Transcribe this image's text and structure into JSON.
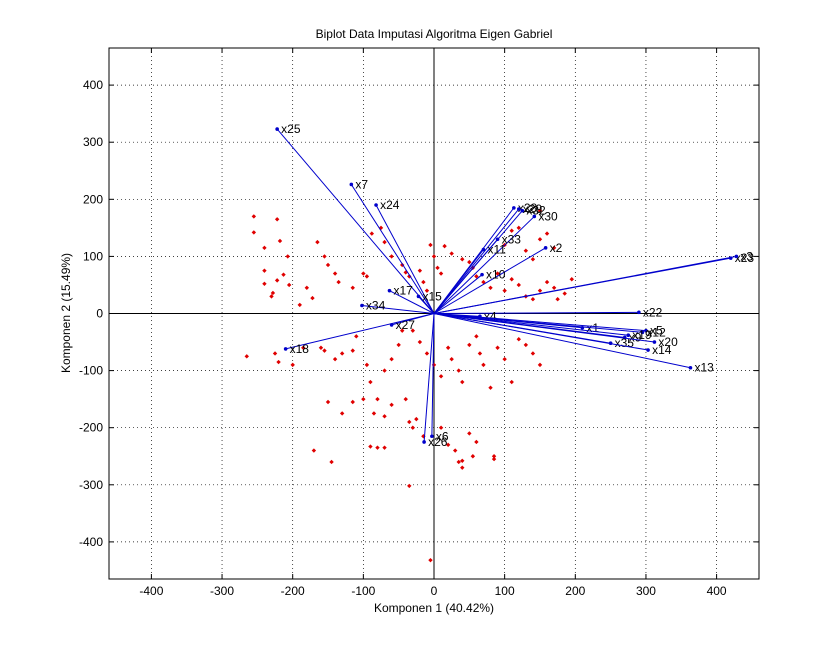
{
  "chart_data": {
    "type": "scatter",
    "title": "Biplot Data Imputasi Algoritma Eigen Gabriel",
    "xlabel": "Komponen 1 (40.42%)",
    "ylabel": "Komponen 2 (15.49%)",
    "xlim": [
      -460,
      460
    ],
    "ylim": [
      -465,
      465
    ],
    "xticks": [
      -400,
      -300,
      -200,
      -100,
      0,
      100,
      200,
      300,
      400
    ],
    "yticks": [
      -400,
      -300,
      -200,
      -100,
      0,
      100,
      200,
      300,
      400
    ],
    "grid": true,
    "colors": {
      "vectors": "#0000cc",
      "points": "#e00000",
      "axes": "#000000"
    },
    "vectors": [
      {
        "label": "x25",
        "x": -222,
        "y": 323
      },
      {
        "label": "x7",
        "x": -117,
        "y": 226
      },
      {
        "label": "x24",
        "x": -82,
        "y": 190
      },
      {
        "label": "x17",
        "x": -63,
        "y": 40
      },
      {
        "label": "x15",
        "x": -22,
        "y": 30
      },
      {
        "label": "x34",
        "x": -102,
        "y": 14
      },
      {
        "label": "x27",
        "x": -60,
        "y": -20
      },
      {
        "label": "x18",
        "x": -210,
        "y": -62
      },
      {
        "label": "x26",
        "x": -14,
        "y": -225
      },
      {
        "label": "x6",
        "x": -3,
        "y": -215
      },
      {
        "label": "x23",
        "x": 420,
        "y": 97
      },
      {
        "label": "x3",
        "x": 428,
        "y": 100
      },
      {
        "label": "x22",
        "x": 290,
        "y": 2
      },
      {
        "label": "x1",
        "x": 210,
        "y": -25
      },
      {
        "label": "x4",
        "x": 65,
        "y": -5
      },
      {
        "label": "x2",
        "x": 158,
        "y": 115
      },
      {
        "label": "x30",
        "x": 142,
        "y": 170
      },
      {
        "label": "x28",
        "x": 113,
        "y": 185
      },
      {
        "label": "x29",
        "x": 120,
        "y": 183
      },
      {
        "label": "x32",
        "x": 125,
        "y": 180
      },
      {
        "label": "x33",
        "x": 90,
        "y": 130
      },
      {
        "label": "x11",
        "x": 70,
        "y": 112
      },
      {
        "label": "x10",
        "x": 68,
        "y": 68
      },
      {
        "label": "x5",
        "x": 300,
        "y": -30
      },
      {
        "label": "x12",
        "x": 295,
        "y": -33
      },
      {
        "label": "x9",
        "x": 270,
        "y": -42
      },
      {
        "label": "x19",
        "x": 275,
        "y": -38
      },
      {
        "label": "x35",
        "x": 250,
        "y": -52
      },
      {
        "label": "x20",
        "x": 312,
        "y": -50
      },
      {
        "label": "x14",
        "x": 303,
        "y": -64
      },
      {
        "label": "x13",
        "x": 363,
        "y": -95
      }
    ],
    "points": [
      [
        -255,
        170
      ],
      [
        -255,
        142
      ],
      [
        -240,
        115
      ],
      [
        -240,
        75
      ],
      [
        -240,
        52
      ],
      [
        -222,
        165
      ],
      [
        -218,
        127
      ],
      [
        -207,
        100
      ],
      [
        -213,
        68
      ],
      [
        -222,
        58
      ],
      [
        -228,
        36
      ],
      [
        -230,
        30
      ],
      [
        -205,
        50
      ],
      [
        -190,
        15
      ],
      [
        -180,
        45
      ],
      [
        -172,
        27
      ],
      [
        -165,
        125
      ],
      [
        -155,
        100
      ],
      [
        -150,
        85
      ],
      [
        -140,
        70
      ],
      [
        -135,
        55
      ],
      [
        -115,
        45
      ],
      [
        -100,
        70
      ],
      [
        -95,
        65
      ],
      [
        -88,
        140
      ],
      [
        -75,
        150
      ],
      [
        -70,
        125
      ],
      [
        -60,
        100
      ],
      [
        -45,
        85
      ],
      [
        -40,
        72
      ],
      [
        -35,
        65
      ],
      [
        -20,
        75
      ],
      [
        -15,
        55
      ],
      [
        -10,
        40
      ],
      [
        -5,
        120
      ],
      [
        0,
        100
      ],
      [
        5,
        80
      ],
      [
        10,
        70
      ],
      [
        15,
        118
      ],
      [
        25,
        105
      ],
      [
        40,
        95
      ],
      [
        50,
        90
      ],
      [
        55,
        80
      ],
      [
        60,
        65
      ],
      [
        70,
        55
      ],
      [
        80,
        45
      ],
      [
        90,
        70
      ],
      [
        100,
        40
      ],
      [
        110,
        60
      ],
      [
        120,
        50
      ],
      [
        130,
        30
      ],
      [
        140,
        25
      ],
      [
        150,
        40
      ],
      [
        160,
        55
      ],
      [
        170,
        45
      ],
      [
        175,
        25
      ],
      [
        185,
        35
      ],
      [
        195,
        60
      ],
      [
        130,
        110
      ],
      [
        140,
        95
      ],
      [
        150,
        130
      ],
      [
        160,
        140
      ],
      [
        170,
        115
      ],
      [
        110,
        145
      ],
      [
        120,
        150
      ],
      [
        100,
        120
      ],
      [
        150,
        180
      ],
      [
        -265,
        -75
      ],
      [
        -225,
        -70
      ],
      [
        -220,
        -85
      ],
      [
        -200,
        -90
      ],
      [
        -185,
        -60
      ],
      [
        -160,
        -60
      ],
      [
        -155,
        -65
      ],
      [
        -140,
        -80
      ],
      [
        -130,
        -70
      ],
      [
        -115,
        -65
      ],
      [
        -110,
        -40
      ],
      [
        -95,
        -90
      ],
      [
        -90,
        -120
      ],
      [
        -80,
        -150
      ],
      [
        -70,
        -100
      ],
      [
        -60,
        -80
      ],
      [
        -50,
        -55
      ],
      [
        -45,
        -30
      ],
      [
        -30,
        -30
      ],
      [
        -20,
        -50
      ],
      [
        -10,
        -70
      ],
      [
        0,
        -90
      ],
      [
        10,
        -110
      ],
      [
        20,
        -60
      ],
      [
        25,
        -80
      ],
      [
        35,
        -100
      ],
      [
        40,
        -120
      ],
      [
        50,
        -55
      ],
      [
        60,
        -40
      ],
      [
        65,
        -70
      ],
      [
        70,
        -90
      ],
      [
        80,
        -130
      ],
      [
        90,
        -60
      ],
      [
        100,
        -80
      ],
      [
        110,
        -120
      ],
      [
        120,
        -45
      ],
      [
        130,
        -55
      ],
      [
        140,
        -70
      ],
      [
        150,
        -90
      ],
      [
        -150,
        -155
      ],
      [
        -130,
        -175
      ],
      [
        -115,
        -155
      ],
      [
        -100,
        -150
      ],
      [
        -85,
        -175
      ],
      [
        -70,
        -180
      ],
      [
        -60,
        -160
      ],
      [
        -40,
        -150
      ],
      [
        -35,
        -190
      ],
      [
        -30,
        -200
      ],
      [
        -25,
        -185
      ],
      [
        -15,
        -215
      ],
      [
        10,
        -200
      ],
      [
        20,
        -230
      ],
      [
        30,
        -240
      ],
      [
        35,
        -260
      ],
      [
        40,
        -270
      ],
      [
        50,
        -210
      ],
      [
        55,
        -250
      ],
      [
        60,
        -225
      ],
      [
        85,
        -250
      ],
      [
        -170,
        -240
      ],
      [
        -145,
        -260
      ],
      [
        -90,
        -233
      ],
      [
        -80,
        -235
      ],
      [
        -70,
        -235
      ],
      [
        -35,
        -302
      ],
      [
        -5,
        -432
      ],
      [
        40,
        -258
      ],
      [
        85,
        -255
      ]
    ]
  }
}
